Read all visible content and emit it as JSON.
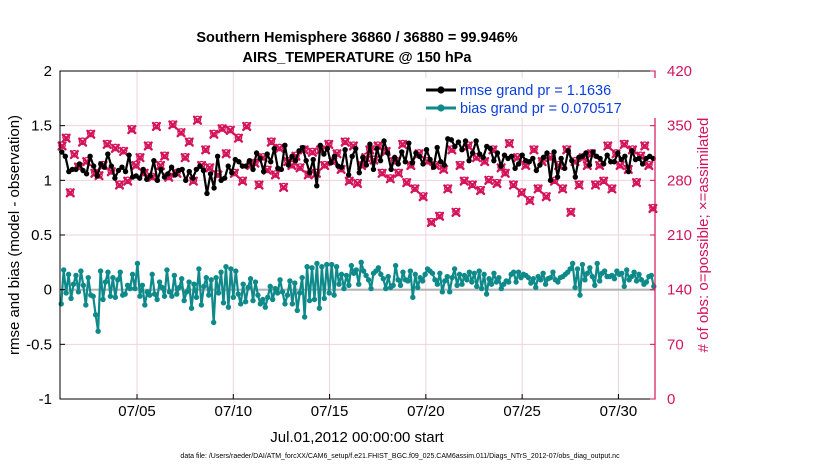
{
  "chart_data": {
    "type": "line",
    "title": "Southern Hemisphere 36860 / 36880 = 99.946%",
    "subtitle": "AIRS_TEMPERATURE @ 150 hPa",
    "xlabel": "Jul.01,2012 00:00:00 start",
    "ylabel": "rmse and bias (model - observation)",
    "y2label": "# of obs: o=possible; ×=assimilated",
    "footnote": "data file: /Users/raeder/DAI/ATM_forcXX/CAM6_setup/f.e21.FHIST_BGC.f09_025.CAM6assim.011/Diags_NTrS_2012-07/obs_diag_output.nc",
    "xlim": [
      1,
      31.9
    ],
    "ylim": [
      -1,
      2
    ],
    "y2lim": [
      0,
      420
    ],
    "xticks": [
      5,
      10,
      15,
      20,
      25,
      30
    ],
    "xticklabels": [
      "07/05",
      "07/10",
      "07/15",
      "07/20",
      "07/25",
      "07/30"
    ],
    "yticks": [
      -1,
      -0.5,
      0,
      0.5,
      1,
      1.5,
      2
    ],
    "yticklabels": [
      "-1",
      "-0.5",
      "0",
      "0.5",
      "1",
      "1.5",
      "2"
    ],
    "y2ticks": [
      0,
      70,
      140,
      210,
      280,
      350,
      420
    ],
    "y2ticklabels": [
      "0",
      "70",
      "140",
      "210",
      "280",
      "350",
      "420"
    ],
    "grid": true,
    "legend_position": "top-right",
    "series": [
      {
        "name": "rmse grand pr = 1.1636",
        "axis": "left",
        "color": "#000000",
        "marker": "circle",
        "values": [
          1.26,
          1.22,
          1.08,
          1.1,
          1.1,
          1.15,
          1.09,
          1.06,
          1.22,
          1.13,
          1.04,
          1.15,
          1.12,
          1.24,
          1.13,
          1.02,
          1.09,
          1.12,
          1.08,
          1.23,
          1.03,
          1.04,
          1.02,
          1.1,
          1.01,
          1.04,
          1.18,
          1.0,
          1.1,
          1.03,
          1.06,
          1.12,
          1.05,
          1.09,
          1.1,
          1.0,
          1.08,
          1.02,
          1.1,
          1.13,
          1.09,
          0.88,
          1.06,
          0.93,
          1.22,
          1.0,
          1.02,
          1.13,
          1.07,
          1.19,
          1.17,
          1.13,
          1.13,
          1.18,
          1.1,
          1.25,
          1.2,
          1.08,
          1.24,
          1.17,
          1.29,
          1.11,
          1.1,
          1.32,
          1.14,
          1.22,
          1.18,
          1.27,
          1.3,
          1.18,
          1.07,
          1.19,
          0.95,
          1.32,
          1.24,
          1.29,
          1.16,
          1.22,
          1.13,
          1.12,
          1.28,
          1.05,
          1.22,
          1.29,
          1.07,
          1.21,
          1.14,
          1.33,
          1.1,
          1.29,
          1.18,
          1.36,
          1.25,
          1.1,
          1.21,
          1.15,
          1.26,
          1.17,
          1.34,
          1.16,
          1.25,
          1.22,
          1.15,
          1.28,
          1.19,
          1.12,
          1.3,
          1.17,
          1.14,
          1.38,
          1.37,
          1.31,
          1.35,
          1.28,
          1.36,
          1.18,
          1.25,
          1.36,
          1.24,
          1.21,
          1.31,
          1.29,
          1.18,
          1.25,
          1.13,
          1.23,
          1.2,
          1.22,
          1.11,
          1.15,
          1.23,
          1.18,
          1.17,
          1.2,
          1.09,
          1.14,
          1.21,
          1.25,
          1.0,
          1.26,
          1.03,
          1.2,
          1.11,
          1.27,
          1.18,
          1.03,
          1.21,
          1.22,
          1.25,
          1.14,
          1.26,
          1.22,
          1.2,
          1.15,
          1.23,
          1.17,
          1.17,
          1.25,
          1.19,
          1.22,
          1.08,
          1.27,
          1.19,
          1.2,
          1.15,
          1.2,
          1.22,
          1.2
        ]
      },
      {
        "name": "bias grand pr = 0.070517",
        "axis": "left",
        "color": "#0f8a8a",
        "marker": "circle",
        "values": [
          -0.13,
          0.18,
          -0.03,
          0.14,
          -0.08,
          0.05,
          0.13,
          -0.02,
          0.17,
          0.04,
          -0.14,
          0.11,
          -0.05,
          -0.06,
          -0.23,
          -0.38,
          0.17,
          -0.09,
          0.07,
          0.16,
          -0.06,
          0.11,
          -0.07,
          0.09,
          0.16,
          -0.05,
          -0.04,
          0.04,
          0.01,
          0.14,
          0.01,
          0.24,
          -0.06,
          0.04,
          -0.14,
          -0.02,
          -0.05,
          0.14,
          -0.04,
          -0.09,
          0.07,
          0.02,
          -0.06,
          0.18,
          -0.02,
          -0.06,
          0.13,
          -0.04,
          0.02,
          0.1,
          -0.1,
          -0.02,
          0.07,
          -0.17,
          0.05,
          -0.07,
          0.19,
          -0.14,
          0.03,
          0.11,
          -0.05,
          0.09,
          -0.3,
          0.11,
          -0.03,
          0.16,
          -0.12,
          0.21,
          -0.16,
          0.19,
          -0.07,
          0.17,
          -0.04,
          -0.13,
          0.05,
          -0.11,
          0.02,
          0.1,
          -0.1,
          0.07,
          -0.05,
          -0.13,
          -0.09,
          -0.16,
          -0.07,
          0.03,
          -0.09,
          0.01,
          -0.03,
          0.09,
          -0.02,
          -0.13,
          -0.05,
          0.08,
          -0.13,
          0.06,
          -0.19,
          -0.03,
          0.11,
          -0.25,
          0.21,
          -0.1,
          0.2,
          -0.09,
          0.24,
          -0.17,
          0.21,
          -0.08,
          0.23,
          -0.03,
          0.23,
          -0.05,
          0.21,
          0.05,
          0.14,
          0.01,
          0.13,
          0.04,
          0.22,
          0.15,
          0.18,
          0.05,
          0.25,
          0.17,
          0.13,
          0.09,
          0.01,
          0.15,
          0.17,
          0.2,
          0.14,
          0.1,
          0.01,
          0.12,
          0.02,
          0.04,
          0.22,
          0.09,
          0.04,
          0.16,
          0.09,
          0.08,
          0.17,
          -0.07,
          0.14,
          0.02,
          0.11,
          0.08,
          0.14,
          0.19,
          0.17,
          0.15,
          0.09,
          0.05,
          0.15,
          -0.02,
          0.08,
          0.12,
          -0.02,
          0.11,
          0.19,
          0.04,
          0.14,
          0.05,
          0.13,
          0.09,
          0.16,
          0.07,
          0.15,
          0.03,
          0.17,
          0.01,
          0.14,
          -0.04,
          0.1,
          0.05,
          0.15,
          0.07,
          0.11,
          0.01,
          0.05,
          0.08,
          0.07,
          0.14,
          0.16,
          0.07,
          0.16,
          0.11,
          0.14,
          0.13,
          0.11,
          0.06,
          0.1,
          0.02,
          0.12,
          0.09,
          0.15,
          0.05,
          0.1,
          0.11,
          0.16,
          0.09,
          0.07,
          0.11,
          0.12,
          0.14,
          0.16,
          0.19,
          0.24,
          0.02,
          0.19,
          -0.05,
          0.23,
          0.09,
          0.15,
          0.2,
          0.12,
          0.04,
          0.24,
          0.08,
          0.15,
          0.17,
          0.12,
          0.12,
          0.13,
          0.1,
          0.17,
          0.14,
          0.15,
          0.03,
          0.18,
          0.09,
          0.12,
          0.16,
          0.08,
          0.14,
          0.09,
          0.05,
          0.07,
          0.12,
          0.13,
          0.03
        ]
      },
      {
        "name": "obs possible (o)",
        "axis": "right",
        "color": "#d4145a",
        "marker": "circle",
        "values": [
          325,
          335,
          265,
          314,
          298,
          330,
          305,
          340,
          290,
          287,
          300,
          327,
          292,
          322,
          275,
          318,
          280,
          346,
          300,
          310,
          290,
          325,
          285,
          350,
          300,
          312,
          285,
          352,
          290,
          342,
          310,
          330,
          280,
          358,
          300,
          320,
          297,
          340,
          288,
          347,
          315,
          345,
          290,
          335,
          280,
          350,
          300,
          303,
          275,
          310,
          294,
          330,
          288,
          322,
          272,
          305,
          300,
          312,
          297,
          320,
          288,
          317,
          290,
          320,
          300,
          327,
          305,
          315,
          295,
          330,
          280,
          325,
          277,
          300,
          310,
          320,
          307,
          325,
          290,
          318,
          283,
          305,
          290,
          327,
          278,
          300,
          270,
          315,
          260,
          305,
          227,
          300,
          235,
          295,
          270,
          320,
          240,
          300,
          280,
          325,
          275,
          310,
          268,
          305,
          281,
          320,
          277,
          297,
          290,
          328,
          275,
          310,
          265,
          300,
          255,
          320,
          270,
          305,
          260,
          310,
          280,
          300,
          270,
          320,
          240,
          305,
          275,
          310,
          300,
          315,
          275,
          300,
          280,
          325,
          270,
          315,
          300,
          327,
          295,
          320,
          278,
          312,
          325,
          300,
          245
        ]
      },
      {
        "name": "obs assimilated (×)",
        "axis": "right",
        "color": "#d4145a",
        "marker": "x",
        "values": [
          324,
          334,
          264,
          313,
          297,
          329,
          304,
          339,
          289,
          286,
          299,
          326,
          291,
          321,
          274,
          317,
          279,
          345,
          299,
          309,
          289,
          324,
          284,
          349,
          299,
          311,
          284,
          351,
          289,
          341,
          309,
          329,
          279,
          357,
          299,
          319,
          296,
          339,
          287,
          346,
          314,
          344,
          289,
          334,
          279,
          349,
          299,
          302,
          274,
          309,
          293,
          329,
          287,
          321,
          271,
          304,
          299,
          311,
          296,
          319,
          287,
          316,
          289,
          319,
          299,
          326,
          304,
          314,
          294,
          329,
          279,
          324,
          276,
          299,
          309,
          319,
          306,
          324,
          289,
          317,
          282,
          304,
          289,
          326,
          277,
          299,
          269,
          314,
          259,
          304,
          226,
          299,
          234,
          294,
          269,
          319,
          239,
          299,
          279,
          324,
          274,
          309,
          267,
          304,
          280,
          319,
          276,
          296,
          289,
          327,
          274,
          309,
          264,
          299,
          254,
          319,
          269,
          304,
          259,
          309,
          279,
          299,
          269,
          319,
          239,
          304,
          274,
          309,
          299,
          314,
          274,
          299,
          279,
          324,
          269,
          314,
          299,
          326,
          294,
          319,
          277,
          311,
          324,
          299,
          244
        ]
      }
    ]
  },
  "colors": {
    "rmse": "#000000",
    "bias": "#0f8a8a",
    "obs": "#d4145a",
    "legend_text": "#0b3ee0",
    "zero_line": "#b4b4b4",
    "grid": "#efd2dc"
  }
}
